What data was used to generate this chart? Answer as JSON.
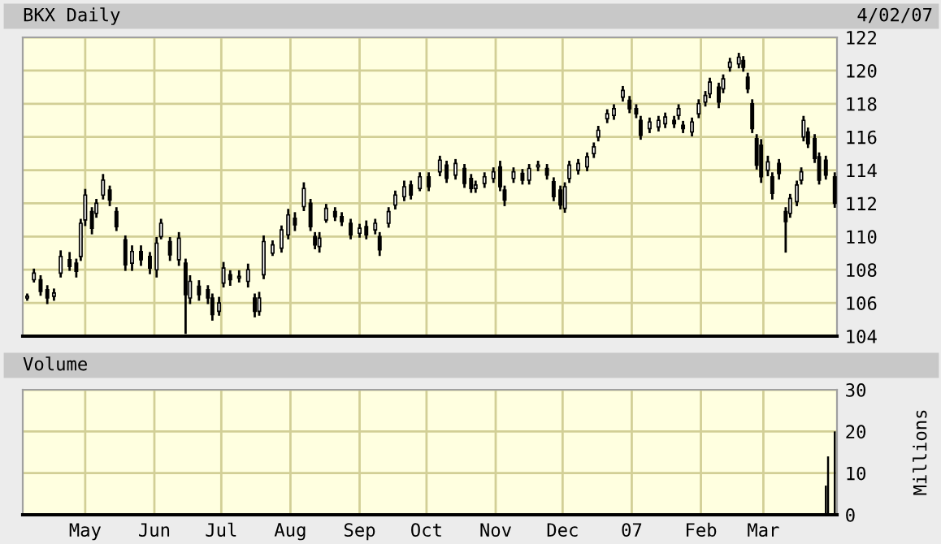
{
  "chart_data": [
    {
      "type": "candlestick",
      "title": "BKX Daily",
      "annotations": [
        "4/02/07"
      ],
      "color": "#000000",
      "x": [
        "2006-04-05",
        "2006-04-08",
        "2006-04-11",
        "2006-04-14",
        "2006-04-17",
        "2006-04-20",
        "2006-04-24",
        "2006-04-27",
        "2006-04-29",
        "2006-05-01",
        "2006-05-04",
        "2006-05-06",
        "2006-05-09",
        "2006-05-12",
        "2006-05-15",
        "2006-05-19",
        "2006-05-22",
        "2006-05-26",
        "2006-05-30",
        "2006-06-02",
        "2006-06-04",
        "2006-06-08",
        "2006-06-12",
        "2006-06-15",
        "2006-06-17",
        "2006-06-21",
        "2006-06-25",
        "2006-06-27",
        "2006-06-30",
        "2006-07-02",
        "2006-07-05",
        "2006-07-09",
        "2006-07-13",
        "2006-07-16",
        "2006-07-18",
        "2006-07-20",
        "2006-07-24",
        "2006-07-28",
        "2006-07-31",
        "2006-08-03",
        "2006-08-07",
        "2006-08-10",
        "2006-08-12",
        "2006-08-14",
        "2006-08-17",
        "2006-08-21",
        "2006-08-24",
        "2006-08-28",
        "2006-09-01",
        "2006-09-04",
        "2006-09-08",
        "2006-09-10",
        "2006-09-14",
        "2006-09-17",
        "2006-09-21",
        "2006-09-24",
        "2006-09-28",
        "2006-10-02",
        "2006-10-07",
        "2006-10-10",
        "2006-10-14",
        "2006-10-18",
        "2006-10-21",
        "2006-10-23",
        "2006-10-27",
        "2006-10-31",
        "2006-11-03",
        "2006-11-05",
        "2006-11-09",
        "2006-11-13",
        "2006-11-16",
        "2006-11-20",
        "2006-11-24",
        "2006-11-27",
        "2006-11-30",
        "2006-12-02",
        "2006-12-04",
        "2006-12-08",
        "2006-12-12",
        "2006-12-15",
        "2006-12-17",
        "2006-12-21",
        "2006-12-24",
        "2006-12-28",
        "2006-12-31",
        "2007-01-03",
        "2007-01-05",
        "2007-01-09",
        "2007-01-13",
        "2007-01-16",
        "2007-01-20",
        "2007-01-22",
        "2007-01-24",
        "2007-01-28",
        "2007-01-31",
        "2007-02-03",
        "2007-02-05",
        "2007-02-09",
        "2007-02-11",
        "2007-02-14",
        "2007-02-18",
        "2007-02-20",
        "2007-02-22",
        "2007-02-24",
        "2007-02-26",
        "2007-02-28",
        "2007-03-03",
        "2007-03-05",
        "2007-03-08",
        "2007-03-11",
        "2007-03-13",
        "2007-03-16",
        "2007-03-18",
        "2007-03-19",
        "2007-03-21",
        "2007-03-24",
        "2007-03-26",
        "2007-03-29",
        "2007-04-02"
      ],
      "ohlc": [
        [
          106.3,
          106.5,
          106.2,
          106.4
        ],
        [
          107.4,
          108.0,
          107.3,
          107.8
        ],
        [
          107.4,
          107.6,
          106.5,
          106.7
        ],
        [
          106.8,
          107.0,
          106.0,
          106.3
        ],
        [
          106.4,
          106.8,
          106.2,
          106.6
        ],
        [
          107.8,
          109.1,
          107.6,
          108.8
        ],
        [
          108.6,
          109.0,
          108.0,
          108.2
        ],
        [
          108.4,
          108.6,
          107.6,
          107.9
        ],
        [
          108.8,
          111.0,
          108.6,
          110.8
        ],
        [
          111.0,
          112.8,
          110.7,
          112.5
        ],
        [
          111.5,
          111.7,
          110.2,
          110.5
        ],
        [
          111.4,
          112.2,
          111.2,
          112.0
        ],
        [
          112.5,
          113.7,
          112.3,
          113.4
        ],
        [
          112.8,
          113.0,
          111.9,
          112.2
        ],
        [
          111.5,
          111.7,
          110.4,
          110.6
        ],
        [
          109.8,
          110.0,
          108.0,
          108.3
        ],
        [
          108.4,
          109.4,
          108.0,
          109.1
        ],
        [
          109.1,
          109.4,
          108.3,
          108.6
        ],
        [
          108.8,
          109.0,
          107.8,
          108.1
        ],
        [
          108.0,
          109.9,
          107.6,
          109.6
        ],
        [
          110.0,
          111.0,
          109.9,
          110.8
        ],
        [
          109.7,
          109.9,
          108.6,
          108.9
        ],
        [
          108.6,
          110.2,
          108.3,
          109.9
        ],
        [
          108.4,
          108.6,
          104.2,
          106.5
        ],
        [
          106.3,
          107.6,
          106.0,
          107.3
        ],
        [
          107.0,
          107.3,
          106.2,
          106.5
        ],
        [
          106.8,
          107.0,
          106.0,
          106.3
        ],
        [
          106.3,
          106.5,
          105.0,
          105.3
        ],
        [
          105.5,
          106.3,
          105.3,
          106.0
        ],
        [
          107.2,
          108.4,
          107.0,
          108.1
        ],
        [
          107.7,
          107.9,
          107.1,
          107.4
        ],
        [
          107.5,
          107.9,
          107.3,
          107.6
        ],
        [
          107.3,
          108.3,
          107.0,
          108.0
        ],
        [
          106.3,
          106.5,
          105.2,
          105.5
        ],
        [
          105.5,
          106.6,
          105.3,
          106.3
        ],
        [
          107.7,
          110.0,
          107.5,
          109.7
        ],
        [
          109.0,
          109.7,
          108.9,
          109.5
        ],
        [
          109.3,
          110.6,
          109.1,
          110.4
        ],
        [
          110.1,
          111.6,
          109.9,
          111.3
        ],
        [
          111.1,
          111.4,
          110.4,
          110.7
        ],
        [
          111.8,
          113.2,
          111.6,
          112.9
        ],
        [
          112.0,
          112.2,
          110.4,
          110.6
        ],
        [
          110.0,
          110.2,
          109.3,
          109.5
        ],
        [
          109.4,
          110.2,
          109.1,
          109.9
        ],
        [
          111.0,
          111.9,
          110.9,
          111.7
        ],
        [
          111.5,
          111.7,
          111.0,
          111.2
        ],
        [
          111.2,
          111.4,
          110.7,
          110.9
        ],
        [
          110.8,
          111.0,
          109.9,
          110.1
        ],
        [
          110.2,
          110.7,
          110.0,
          110.5
        ],
        [
          110.6,
          110.9,
          109.9,
          110.1
        ],
        [
          110.4,
          111.0,
          110.2,
          110.8
        ],
        [
          110.0,
          110.2,
          108.9,
          109.2
        ],
        [
          110.8,
          111.7,
          110.6,
          111.5
        ],
        [
          111.9,
          112.7,
          111.7,
          112.5
        ],
        [
          112.4,
          113.3,
          112.2,
          113.0
        ],
        [
          113.1,
          113.3,
          112.3,
          112.5
        ],
        [
          112.9,
          113.8,
          112.8,
          113.6
        ],
        [
          113.6,
          113.8,
          112.8,
          113.0
        ],
        [
          113.9,
          114.8,
          113.7,
          114.6
        ],
        [
          114.3,
          114.5,
          113.3,
          113.5
        ],
        [
          113.7,
          114.6,
          113.5,
          114.4
        ],
        [
          114.1,
          114.3,
          113.0,
          113.2
        ],
        [
          113.5,
          113.7,
          112.7,
          112.9
        ],
        [
          112.9,
          113.3,
          112.7,
          113.1
        ],
        [
          113.2,
          113.8,
          113.0,
          113.6
        ],
        [
          113.5,
          114.1,
          113.3,
          113.9
        ],
        [
          114.2,
          114.5,
          112.8,
          113.0
        ],
        [
          112.8,
          113.0,
          111.9,
          112.2
        ],
        [
          113.5,
          114.1,
          113.3,
          113.9
        ],
        [
          113.8,
          114.0,
          113.2,
          113.4
        ],
        [
          113.4,
          114.3,
          113.2,
          114.1
        ],
        [
          114.2,
          114.5,
          114.0,
          114.3
        ],
        [
          114.1,
          114.3,
          113.5,
          113.7
        ],
        [
          113.3,
          113.5,
          112.2,
          112.4
        ],
        [
          112.8,
          113.0,
          111.7,
          111.9
        ],
        [
          111.7,
          113.2,
          111.5,
          113.0
        ],
        [
          113.5,
          114.5,
          113.3,
          114.3
        ],
        [
          114.0,
          114.6,
          113.8,
          114.4
        ],
        [
          114.2,
          115.0,
          114.0,
          114.8
        ],
        [
          115.0,
          115.6,
          114.8,
          115.4
        ],
        [
          116.0,
          116.6,
          115.8,
          116.4
        ],
        [
          117.1,
          117.6,
          116.9,
          117.4
        ],
        [
          117.3,
          117.9,
          117.1,
          117.7
        ],
        [
          118.4,
          119.0,
          118.2,
          118.8
        ],
        [
          118.2,
          118.4,
          117.5,
          117.7
        ],
        [
          117.7,
          117.9,
          117.2,
          117.4
        ],
        [
          117.0,
          117.2,
          115.9,
          116.1
        ],
        [
          116.5,
          117.1,
          116.3,
          116.9
        ],
        [
          116.6,
          117.2,
          116.4,
          117.0
        ],
        [
          116.8,
          117.4,
          116.6,
          117.2
        ],
        [
          117.0,
          117.2,
          116.6,
          116.8
        ],
        [
          117.3,
          117.9,
          117.1,
          117.7
        ],
        [
          116.7,
          116.9,
          116.3,
          116.5
        ],
        [
          116.3,
          117.1,
          116.1,
          116.9
        ],
        [
          117.4,
          118.2,
          117.2,
          118.0
        ],
        [
          118.1,
          118.7,
          117.9,
          118.5
        ],
        [
          118.6,
          119.5,
          118.4,
          119.3
        ],
        [
          119.0,
          119.2,
          117.8,
          118.1
        ],
        [
          118.9,
          119.7,
          118.7,
          119.5
        ],
        [
          120.2,
          120.7,
          120.0,
          120.5
        ],
        [
          120.4,
          121.0,
          120.2,
          120.8
        ],
        [
          120.6,
          120.8,
          120.0,
          120.2
        ],
        [
          119.6,
          119.8,
          118.7,
          118.9
        ],
        [
          118.0,
          118.2,
          116.3,
          116.5
        ],
        [
          115.9,
          116.1,
          114.1,
          114.3
        ],
        [
          115.5,
          115.8,
          113.3,
          113.6
        ],
        [
          114.0,
          114.8,
          113.7,
          114.5
        ],
        [
          113.6,
          113.8,
          112.3,
          112.6
        ],
        [
          114.4,
          114.6,
          113.5,
          113.8
        ],
        [
          111.5,
          111.7,
          109.1,
          110.9
        ],
        [
          111.4,
          112.5,
          111.2,
          112.3
        ],
        [
          112.1,
          113.3,
          111.9,
          113.1
        ],
        [
          113.4,
          114.1,
          113.2,
          113.9
        ],
        [
          116.0,
          117.2,
          115.8,
          117.0
        ],
        [
          116.3,
          116.5,
          115.4,
          115.6
        ],
        [
          115.9,
          116.1,
          114.5,
          114.7
        ],
        [
          114.8,
          115.0,
          113.2,
          113.4
        ],
        [
          114.6,
          114.8,
          113.5,
          113.7
        ],
        [
          113.6,
          113.8,
          111.8,
          112.0
        ]
      ],
      "xlim": [
        "2006-04-03",
        "2007-04-03"
      ],
      "xticks": [
        "2006-05-01",
        "2006-06-01",
        "2006-07-01",
        "2006-08-01",
        "2006-09-01",
        "2006-10-01",
        "2006-11-01",
        "2006-12-01",
        "2007-01-01",
        "2007-02-01",
        "2007-03-01"
      ],
      "ylim": [
        104,
        122
      ],
      "yticks": [
        104,
        106,
        108,
        110,
        112,
        114,
        116,
        118,
        120,
        122
      ],
      "tick_labels": "y",
      "grid": true
    },
    {
      "type": "bar",
      "title": "Volume",
      "y2label": "Millions",
      "color": "#000000",
      "x": [
        "2007-03-29",
        "2007-03-30",
        "2007-04-02"
      ],
      "values": [
        7,
        14,
        20
      ],
      "xlim": [
        "2006-04-03",
        "2007-04-03"
      ],
      "xticks": [
        {
          "value": "2006-05-01",
          "label": "May"
        },
        {
          "value": "2006-06-01",
          "label": "Jun"
        },
        {
          "value": "2006-07-01",
          "label": "Jul"
        },
        {
          "value": "2006-08-01",
          "label": "Aug"
        },
        {
          "value": "2006-09-01",
          "label": "Sep"
        },
        {
          "value": "2006-10-01",
          "label": "Oct"
        },
        {
          "value": "2006-11-01",
          "label": "Nov"
        },
        {
          "value": "2006-12-01",
          "label": "Dec"
        },
        {
          "value": "2007-01-01",
          "label": "07"
        },
        {
          "value": "2007-02-01",
          "label": "Feb"
        },
        {
          "value": "2007-03-01",
          "label": "Mar"
        }
      ],
      "ylim": [
        0,
        30
      ],
      "yticks": [
        0,
        10,
        20,
        30
      ],
      "grid": true
    }
  ]
}
